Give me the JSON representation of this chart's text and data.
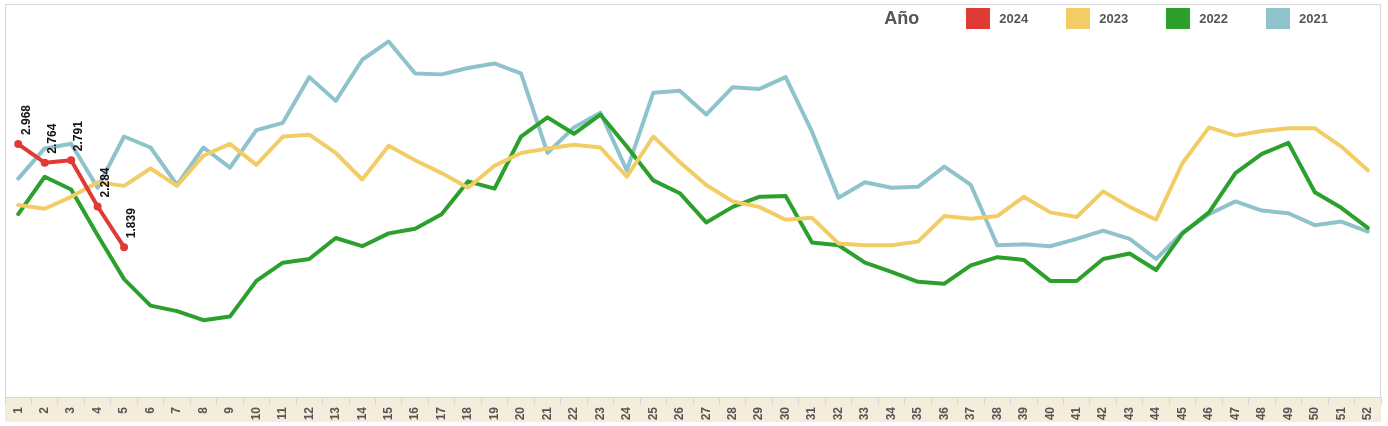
{
  "chart_data": {
    "type": "line",
    "legend": "top right",
    "legend_title": "Año",
    "grid": false,
    "marker": "none",
    "tick_labels": "x",
    "ylim": [
      0.2,
      4.5
    ],
    "categories": [
      "1",
      "2",
      "3",
      "4",
      "5",
      "6",
      "7",
      "8",
      "9",
      "10",
      "11",
      "12",
      "13",
      "14",
      "15",
      "16",
      "17",
      "18",
      "19",
      "20",
      "21",
      "22",
      "23",
      "24",
      "25",
      "26",
      "27",
      "28",
      "29",
      "30",
      "31",
      "32",
      "33",
      "34",
      "35",
      "36",
      "37",
      "38",
      "39",
      "40",
      "41",
      "42",
      "43",
      "44",
      "45",
      "46",
      "47",
      "48",
      "49",
      "50",
      "51",
      "52"
    ],
    "series": [
      {
        "name": "2024",
        "color": "#e03a35",
        "marker": "circle",
        "values": [
          2.968,
          2.764,
          2.791,
          2.284,
          1.839,
          null,
          null,
          null,
          null,
          null,
          null,
          null,
          null,
          null,
          null,
          null,
          null,
          null,
          null,
          null,
          null,
          null,
          null,
          null,
          null,
          null,
          null,
          null,
          null,
          null,
          null,
          null,
          null,
          null,
          null,
          null,
          null,
          null,
          null,
          null,
          null,
          null,
          null,
          null,
          null,
          null,
          null,
          null,
          null,
          null,
          null,
          null
        ],
        "value_labels": [
          "2.968",
          "2.764",
          "2.791",
          "2.284",
          "1.839",
          null,
          null,
          null,
          null,
          null,
          null,
          null,
          null,
          null,
          null,
          null,
          null,
          null,
          null,
          null,
          null,
          null,
          null,
          null,
          null,
          null,
          null,
          null,
          null,
          null,
          null,
          null,
          null,
          null,
          null,
          null,
          null,
          null,
          null,
          null,
          null,
          null,
          null,
          null,
          null,
          null,
          null,
          null,
          null,
          null,
          null,
          null
        ]
      },
      {
        "name": "2023",
        "color": "#f2cd66",
        "values": [
          2.3,
          2.26,
          2.39,
          2.55,
          2.51,
          2.7,
          2.51,
          2.84,
          2.97,
          2.74,
          3.05,
          3.07,
          2.87,
          2.58,
          2.95,
          2.79,
          2.65,
          2.49,
          2.73,
          2.87,
          2.92,
          2.96,
          2.93,
          2.61,
          3.05,
          2.77,
          2.52,
          2.34,
          2.28,
          2.14,
          2.16,
          1.88,
          1.86,
          1.86,
          1.9,
          2.18,
          2.15,
          2.18,
          2.39,
          2.22,
          2.17,
          2.45,
          2.28,
          2.14,
          2.76,
          3.15,
          3.06,
          3.11,
          3.14,
          3.14,
          2.94,
          2.68
        ]
      },
      {
        "name": "2022",
        "color": "#2ca02c",
        "values": [
          2.2,
          2.61,
          2.47,
          1.97,
          1.49,
          1.2,
          1.14,
          1.04,
          1.08,
          1.47,
          1.67,
          1.71,
          1.94,
          1.85,
          1.99,
          2.04,
          2.2,
          2.56,
          2.48,
          3.05,
          3.26,
          3.08,
          3.29,
          2.94,
          2.57,
          2.43,
          2.11,
          2.28,
          2.39,
          2.4,
          1.89,
          1.86,
          1.67,
          1.57,
          1.46,
          1.44,
          1.64,
          1.73,
          1.7,
          1.47,
          1.47,
          1.71,
          1.77,
          1.59,
          1.99,
          2.22,
          2.65,
          2.86,
          2.98,
          2.44,
          2.27,
          2.05
        ]
      },
      {
        "name": "2021",
        "color": "#8fc3cc",
        "values": [
          2.59,
          2.92,
          2.97,
          2.49,
          3.05,
          2.93,
          2.52,
          2.93,
          2.71,
          3.12,
          3.2,
          3.7,
          3.44,
          3.89,
          4.09,
          3.74,
          3.73,
          3.8,
          3.85,
          3.74,
          2.87,
          3.15,
          3.31,
          2.68,
          3.53,
          3.55,
          3.29,
          3.59,
          3.57,
          3.7,
          3.1,
          2.38,
          2.55,
          2.49,
          2.5,
          2.72,
          2.52,
          1.86,
          1.87,
          1.85,
          1.93,
          2.02,
          1.93,
          1.71,
          2.0,
          2.2,
          2.34,
          2.24,
          2.21,
          2.08,
          2.12,
          2.01
        ]
      }
    ]
  }
}
